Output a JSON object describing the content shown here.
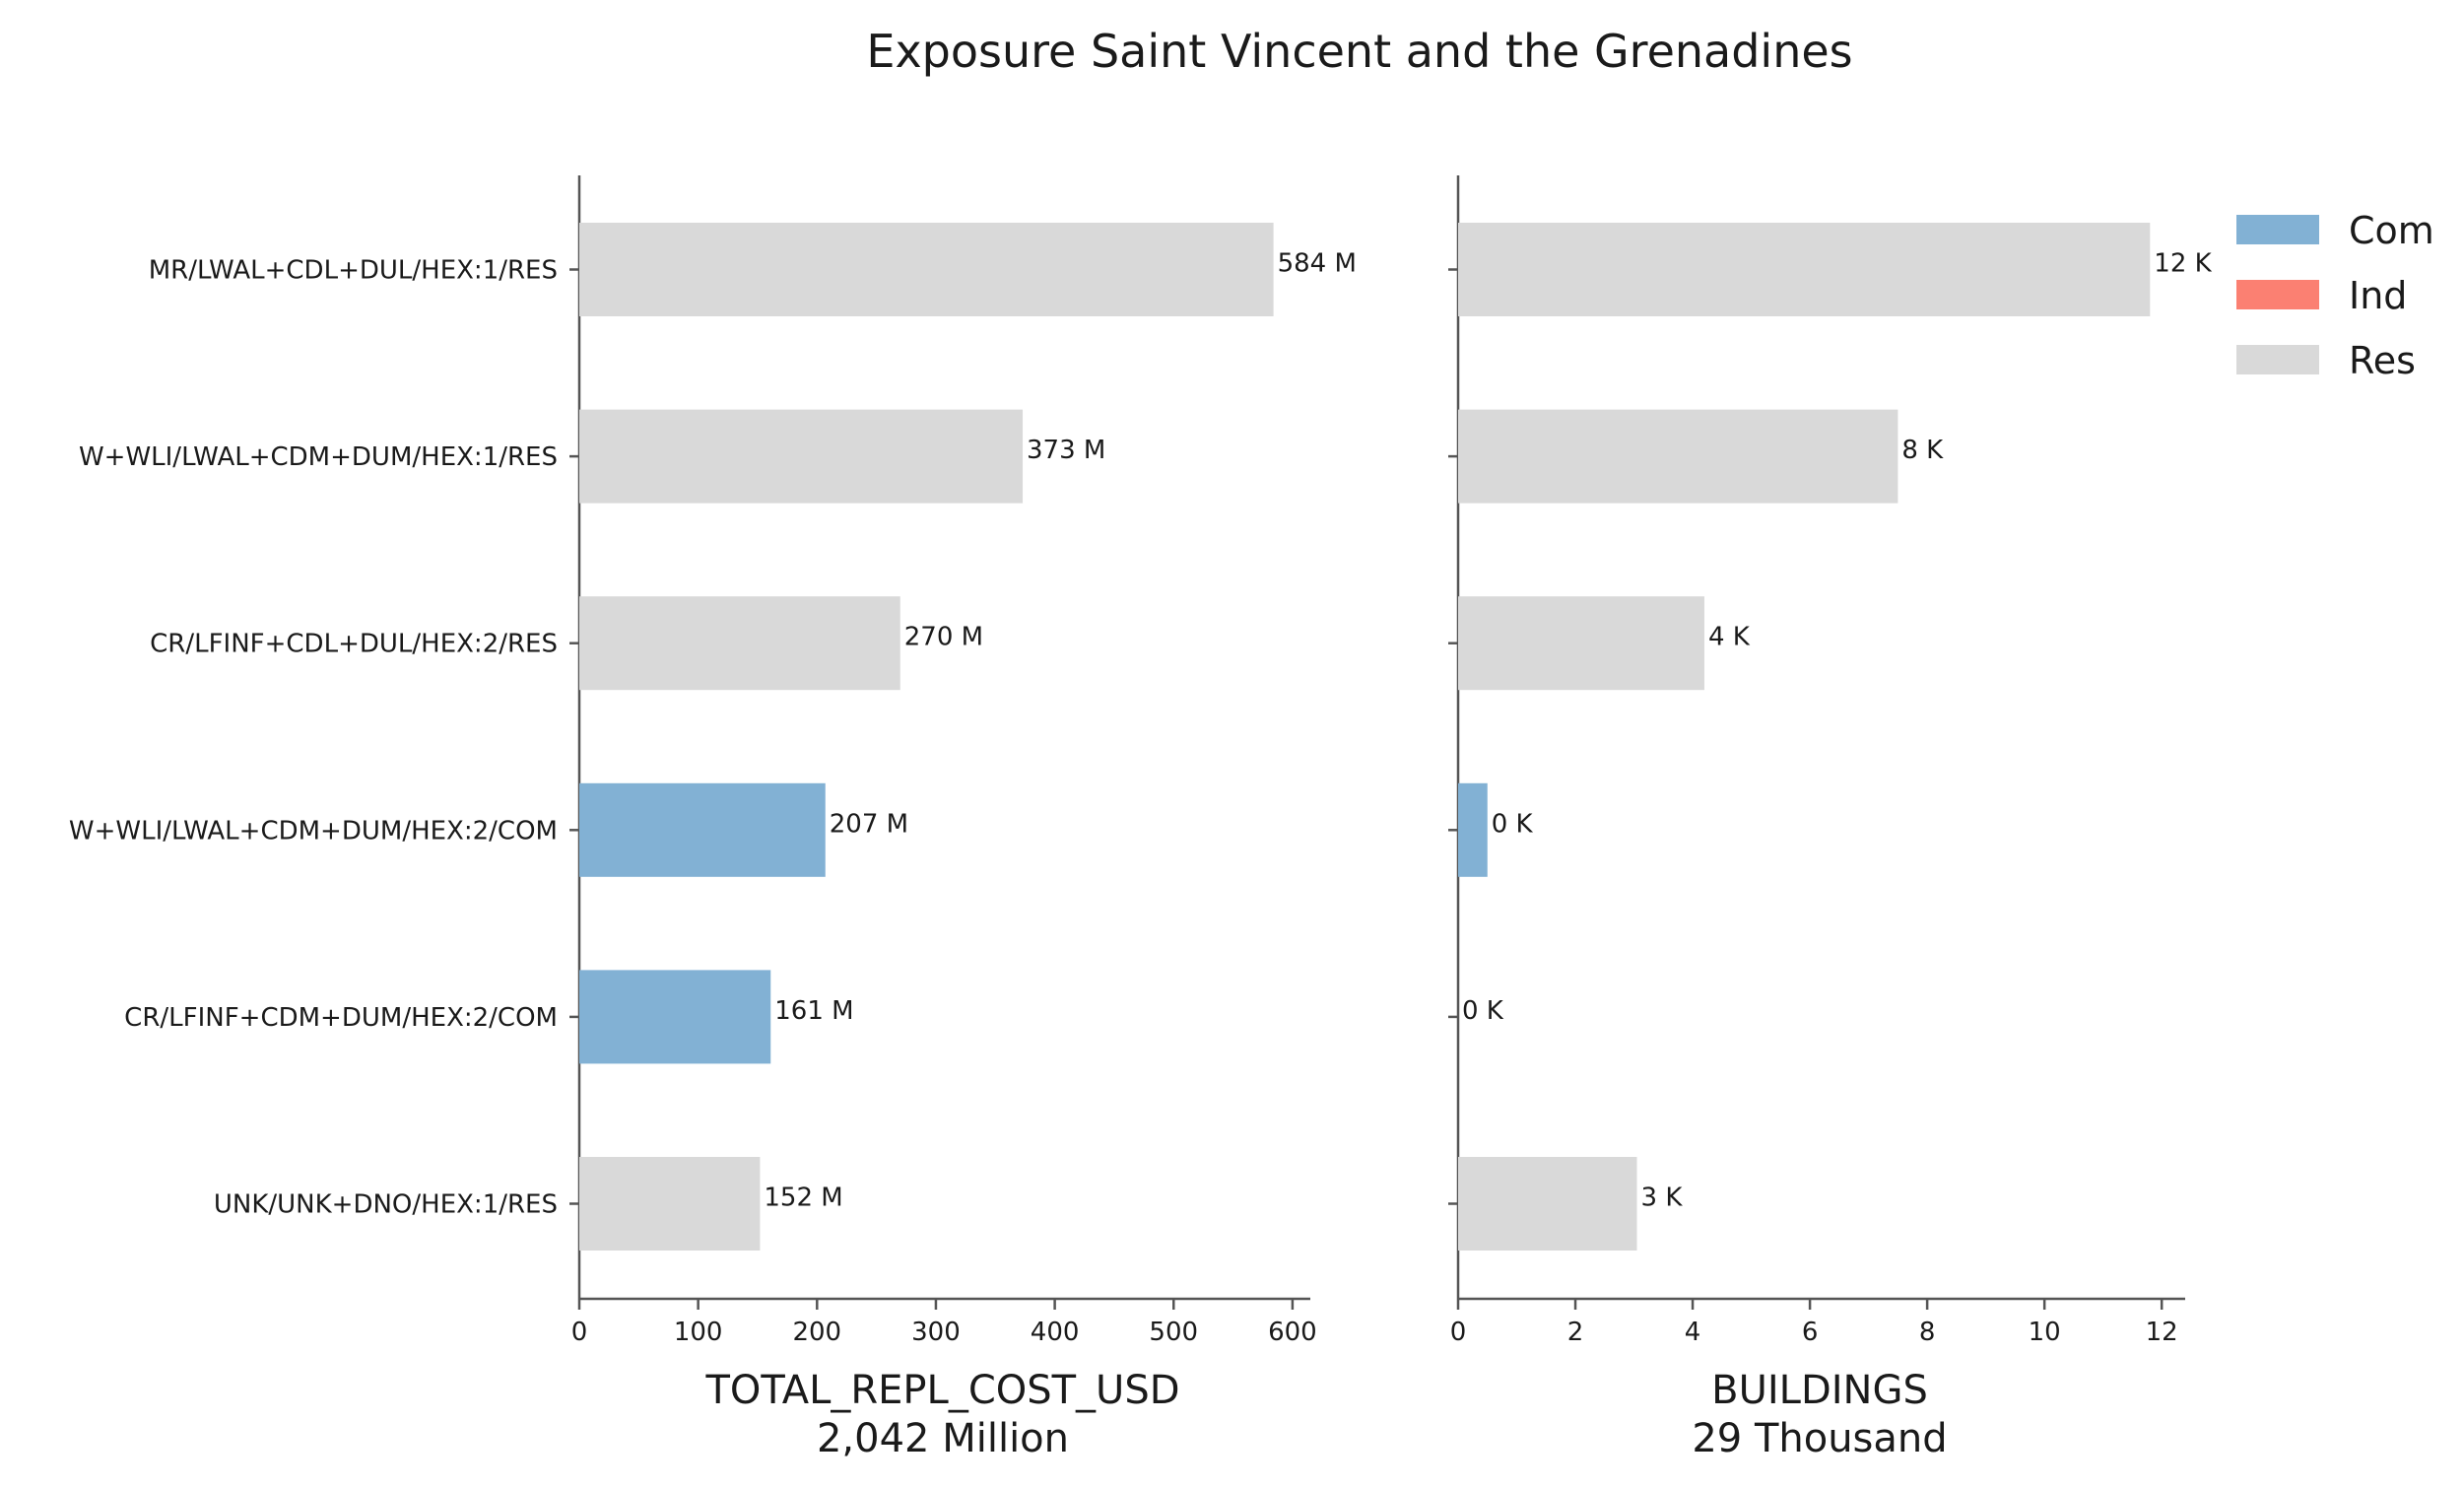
{
  "title": "Exposure Saint Vincent and the Grenadines",
  "colors": {
    "Com": "#82b1d4",
    "Ind": "#fb8072",
    "Res": "#d9d9d9"
  },
  "legend": [
    "Com",
    "Ind",
    "Res"
  ],
  "chart_data": [
    {
      "type": "bar",
      "orientation": "horizontal",
      "categories": [
        "MR/LWAL+CDL+DUL/HEX:1/RES",
        "W+WLI/LWAL+CDM+DUM/HEX:1/RES",
        "CR/LFINF+CDL+DUL/HEX:2/RES",
        "W+WLI/LWAL+CDM+DUM/HEX:2/COM",
        "CR/LFINF+CDM+DUM/HEX:2/COM",
        "UNK/UNK+DNO/HEX:1/RES"
      ],
      "occupancy": [
        "Res",
        "Res",
        "Res",
        "Com",
        "Com",
        "Res"
      ],
      "values": [
        584,
        373,
        270,
        207,
        161,
        152
      ],
      "bar_labels": [
        "584 M",
        "373 M",
        "270 M",
        "207 M",
        "161 M",
        "152 M"
      ],
      "xlim": [
        0,
        615
      ],
      "xticks": [
        0,
        100,
        200,
        300,
        400,
        500,
        600
      ],
      "xlabel": "TOTAL_REPL_COST_USD",
      "xlabel2": "2,042 Million"
    },
    {
      "type": "bar",
      "orientation": "horizontal",
      "categories": [
        "MR/LWAL+CDL+DUL/HEX:1/RES",
        "W+WLI/LWAL+CDM+DUM/HEX:1/RES",
        "CR/LFINF+CDL+DUL/HEX:2/RES",
        "W+WLI/LWAL+CDM+DUM/HEX:2/COM",
        "CR/LFINF+CDM+DUM/HEX:2/COM",
        "UNK/UNK+DNO/HEX:1/RES"
      ],
      "occupancy": [
        "Res",
        "Res",
        "Res",
        "Com",
        "Com",
        "Res"
      ],
      "values": [
        11.8,
        7.5,
        4.2,
        0.5,
        0.0,
        3.05
      ],
      "bar_labels": [
        "12 K",
        "8 K",
        "4 K",
        "0 K",
        "0 K",
        "3 K"
      ],
      "xlim": [
        0,
        12.4
      ],
      "xticks": [
        0,
        2,
        4,
        6,
        8,
        10,
        12
      ],
      "xlabel": "BUILDINGS",
      "xlabel2": "29 Thousand"
    }
  ]
}
